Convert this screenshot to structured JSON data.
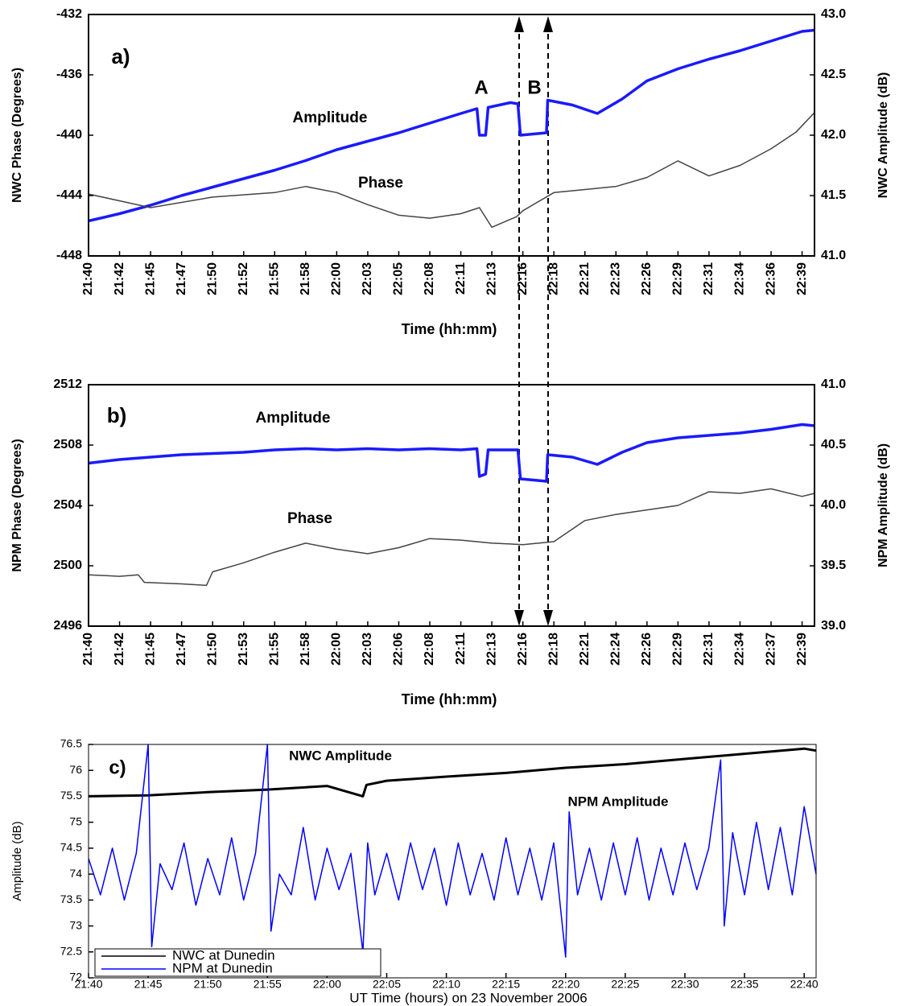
{
  "chart_data": [
    {
      "type": "line",
      "xlabel": "Time (hh:mm)",
      "ylabel": "NWC Phase (Degrees)",
      "y2label": "NWC Amplitude (dB)",
      "annotations": [
        "a)",
        "A",
        "B"
      ],
      "xlim": [
        1300,
        1358.5
      ],
      "xticks": [
        {
          "value": 1300,
          "label": "21:40"
        },
        {
          "value": 1302.5,
          "label": "21:42"
        },
        {
          "value": 1305,
          "label": "21:45"
        },
        {
          "value": 1307.5,
          "label": "21:47"
        },
        {
          "value": 1310,
          "label": "21:50"
        },
        {
          "value": 1312.5,
          "label": "21:52"
        },
        {
          "value": 1315,
          "label": "21:55"
        },
        {
          "value": 1317.5,
          "label": "21:58"
        },
        {
          "value": 1320,
          "label": "22:00"
        },
        {
          "value": 1322.5,
          "label": "22:03"
        },
        {
          "value": 1325,
          "label": "22:05"
        },
        {
          "value": 1327.5,
          "label": "22:08"
        },
        {
          "value": 1330,
          "label": "22:11"
        },
        {
          "value": 1332.5,
          "label": "22:13"
        },
        {
          "value": 1335,
          "label": "22:16"
        },
        {
          "value": 1337.5,
          "label": "22:18"
        },
        {
          "value": 1340,
          "label": "22:21"
        },
        {
          "value": 1342.5,
          "label": "22:23"
        },
        {
          "value": 1345,
          "label": "22:26"
        },
        {
          "value": 1347.5,
          "label": "22:29"
        },
        {
          "value": 1350,
          "label": "22:31"
        },
        {
          "value": 1352.5,
          "label": "22:34"
        },
        {
          "value": 1355,
          "label": "22:36"
        },
        {
          "value": 1357.5,
          "label": "22:39"
        }
      ],
      "ylim": [
        -448,
        -432
      ],
      "yticks": [
        -448,
        -444,
        -440,
        -436,
        -432
      ],
      "y2lim": [
        41,
        43
      ],
      "y2ticks": [
        {
          "value": 41,
          "label": "41.0"
        },
        41.5,
        {
          "value": 42,
          "label": "42.0"
        },
        42.5,
        {
          "value": 43,
          "label": "43.0"
        }
      ],
      "series": [
        {
          "name": "Amplitude",
          "color": "#1a1aff",
          "axis": "y2",
          "x": [
            1300,
            1302.5,
            1305,
            1307.5,
            1310,
            1312.5,
            1315,
            1317.5,
            1320,
            1322.5,
            1325,
            1327.5,
            1330,
            1331.3,
            1331.5,
            1332,
            1332.2,
            1334,
            1334.6,
            1334.8,
            1336.9,
            1337,
            1339,
            1341,
            1343,
            1345,
            1347.5,
            1350,
            1352.5,
            1355,
            1357.5,
            1358.5
          ],
          "values": [
            41.29,
            41.35,
            41.42,
            41.5,
            41.57,
            41.64,
            41.71,
            41.79,
            41.88,
            41.95,
            42.02,
            42.1,
            42.18,
            42.22,
            42.0,
            42.0,
            42.23,
            42.27,
            42.26,
            42.0,
            42.02,
            42.29,
            42.25,
            42.18,
            42.3,
            42.45,
            42.55,
            42.63,
            42.7,
            42.78,
            42.86,
            42.87
          ]
        },
        {
          "name": "Phase",
          "color": "#444444",
          "x": [
            1300,
            1305,
            1310,
            1315,
            1317.5,
            1320,
            1322.5,
            1325,
            1327.5,
            1330,
            1331.5,
            1332.5,
            1334.5,
            1335,
            1337.5,
            1340,
            1342.5,
            1345,
            1347.5,
            1350,
            1352.5,
            1355,
            1357,
            1358.5
          ],
          "values": [
            -443.9,
            -444.8,
            -444.1,
            -443.8,
            -443.4,
            -443.8,
            -444.6,
            -445.3,
            -445.5,
            -445.2,
            -444.8,
            -446.1,
            -445.4,
            -445.0,
            -443.8,
            -443.6,
            -443.4,
            -442.8,
            -441.7,
            -442.7,
            -442.0,
            -440.9,
            -439.8,
            -438.5
          ]
        }
      ]
    },
    {
      "type": "line",
      "xlabel": "Time (hh:mm)",
      "ylabel": "NPM Phase (Degrees)",
      "y2label": "NPM Amplitude (dB)",
      "annotations": [
        "b)"
      ],
      "xlim": [
        1300,
        1358.5
      ],
      "xticks": [
        {
          "value": 1300,
          "label": "21:40"
        },
        {
          "value": 1302.5,
          "label": "21:42"
        },
        {
          "value": 1305,
          "label": "21:45"
        },
        {
          "value": 1307.5,
          "label": "21:47"
        },
        {
          "value": 1310,
          "label": "21:50"
        },
        {
          "value": 1312.5,
          "label": "21:53"
        },
        {
          "value": 1315,
          "label": "21:55"
        },
        {
          "value": 1317.5,
          "label": "21:58"
        },
        {
          "value": 1320,
          "label": "22:00"
        },
        {
          "value": 1322.5,
          "label": "22:03"
        },
        {
          "value": 1325,
          "label": "22:06"
        },
        {
          "value": 1327.5,
          "label": "22:08"
        },
        {
          "value": 1330,
          "label": "22:11"
        },
        {
          "value": 1332.5,
          "label": "22:13"
        },
        {
          "value": 1335,
          "label": "22:16"
        },
        {
          "value": 1337.5,
          "label": "22:18"
        },
        {
          "value": 1340,
          "label": "22:21"
        },
        {
          "value": 1342.5,
          "label": "22:24"
        },
        {
          "value": 1345,
          "label": "22:26"
        },
        {
          "value": 1347.5,
          "label": "22:29"
        },
        {
          "value": 1350,
          "label": "22:31"
        },
        {
          "value": 1352.5,
          "label": "22:34"
        },
        {
          "value": 1355,
          "label": "22:37"
        },
        {
          "value": 1357.5,
          "label": "22:39"
        }
      ],
      "ylim": [
        2496,
        2512
      ],
      "yticks": [
        2496,
        2500,
        2504,
        2508,
        2512
      ],
      "y2lim": [
        39,
        41
      ],
      "y2ticks": [
        {
          "value": 39,
          "label": "39.0"
        },
        39.5,
        {
          "value": 40,
          "label": "40.0"
        },
        40.5,
        {
          "value": 41,
          "label": "41.0"
        }
      ],
      "series": [
        {
          "name": "Amplitude",
          "color": "#1a1aff",
          "axis": "y2",
          "x": [
            1300,
            1302.5,
            1305,
            1307.5,
            1310,
            1312.5,
            1315,
            1317.5,
            1320,
            1322.5,
            1325,
            1327.5,
            1330,
            1331.3,
            1331.5,
            1332,
            1332.2,
            1334.6,
            1334.8,
            1336.9,
            1337,
            1339,
            1341,
            1343,
            1345,
            1347.5,
            1350,
            1352.5,
            1355,
            1357.5,
            1358.5
          ],
          "values": [
            40.35,
            40.38,
            40.4,
            40.42,
            40.43,
            40.44,
            40.46,
            40.47,
            40.46,
            40.47,
            40.46,
            40.47,
            40.46,
            40.47,
            40.24,
            40.26,
            40.46,
            40.46,
            40.22,
            40.2,
            40.42,
            40.4,
            40.34,
            40.44,
            40.52,
            40.56,
            40.58,
            40.6,
            40.63,
            40.67,
            40.66
          ]
        },
        {
          "name": "Phase",
          "color": "#444444",
          "x": [
            1300,
            1302.5,
            1304,
            1304.5,
            1307.5,
            1309.5,
            1310,
            1312.5,
            1315,
            1317.5,
            1320,
            1322.5,
            1325,
            1327.5,
            1330,
            1332.5,
            1335,
            1337.5,
            1340,
            1342.5,
            1345,
            1347.5,
            1350,
            1352.5,
            1355,
            1357.5,
            1358.5
          ],
          "values": [
            2499.4,
            2499.3,
            2499.4,
            2498.9,
            2498.8,
            2498.7,
            2499.6,
            2500.2,
            2500.9,
            2501.5,
            2501.1,
            2500.8,
            2501.2,
            2501.8,
            2501.7,
            2501.5,
            2501.4,
            2501.6,
            2503.0,
            2503.4,
            2503.7,
            2504.0,
            2504.9,
            2504.8,
            2505.1,
            2504.6,
            2504.8
          ]
        }
      ]
    },
    {
      "type": "line",
      "xlabel": "UT Time (hours) on 23 November 2006",
      "ylabel": "Amplitude (dB)",
      "annotations": [
        "c)",
        "NWC Amplitude",
        "NPM Amplitude"
      ],
      "legend": "lower left",
      "xlim": [
        1300,
        1361
      ],
      "xticks": [
        {
          "value": 1300,
          "label": "21:40"
        },
        {
          "value": 1305,
          "label": "21:45"
        },
        {
          "value": 1310,
          "label": "21:50"
        },
        {
          "value": 1315,
          "label": "21:55"
        },
        {
          "value": 1320,
          "label": "22:00"
        },
        {
          "value": 1325,
          "label": "22:05"
        },
        {
          "value": 1330,
          "label": "22:10"
        },
        {
          "value": 1335,
          "label": "22:15"
        },
        {
          "value": 1340,
          "label": "22:20"
        },
        {
          "value": 1345,
          "label": "22:25"
        },
        {
          "value": 1350,
          "label": "22:30"
        },
        {
          "value": 1355,
          "label": "22:35"
        },
        {
          "value": 1360,
          "label": "22:40"
        }
      ],
      "ylim": [
        72,
        76.5
      ],
      "yticks": [
        72,
        72.5,
        73,
        73.5,
        74,
        74.5,
        75,
        75.5,
        76,
        76.5
      ],
      "series": [
        {
          "name": "NWC at Dunedin",
          "color": "#000000",
          "x": [
            1300,
            1305,
            1310,
            1315,
            1320,
            1323,
            1323.3,
            1325,
            1330,
            1335,
            1340,
            1345,
            1350,
            1355,
            1360,
            1361
          ],
          "values": [
            75.5,
            75.52,
            75.58,
            75.63,
            75.7,
            75.5,
            75.72,
            75.8,
            75.88,
            75.95,
            76.05,
            76.12,
            76.22,
            76.32,
            76.42,
            76.38
          ]
        },
        {
          "name": "NPM at Dunedin",
          "color": "#0000ff",
          "x": [
            1300,
            1301,
            1302,
            1303,
            1304,
            1305,
            1305.3,
            1306,
            1307,
            1308,
            1309,
            1310,
            1311,
            1312,
            1313,
            1314,
            1315,
            1315.3,
            1316,
            1317,
            1318,
            1319,
            1320,
            1321,
            1322,
            1323,
            1323.4,
            1324,
            1325,
            1326,
            1327,
            1328,
            1329,
            1330,
            1331,
            1332,
            1333,
            1334,
            1335,
            1336,
            1337,
            1338,
            1339,
            1340,
            1340.3,
            1341,
            1342,
            1343,
            1344,
            1345,
            1346,
            1347,
            1348,
            1349,
            1350,
            1351,
            1352,
            1353,
            1353.3,
            1354,
            1355,
            1356,
            1357,
            1358,
            1359,
            1360,
            1361
          ],
          "values": [
            74.3,
            73.6,
            74.5,
            73.5,
            74.4,
            76.5,
            72.6,
            74.2,
            73.7,
            74.6,
            73.4,
            74.3,
            73.6,
            74.7,
            73.5,
            74.4,
            76.5,
            72.9,
            74.0,
            73.6,
            74.9,
            73.5,
            74.5,
            73.7,
            74.4,
            72.5,
            74.6,
            73.6,
            74.4,
            73.5,
            74.6,
            73.7,
            74.5,
            73.4,
            74.6,
            73.6,
            74.4,
            73.5,
            74.7,
            73.6,
            74.5,
            73.5,
            74.6,
            72.4,
            75.2,
            73.6,
            74.5,
            73.5,
            74.6,
            73.6,
            74.7,
            73.5,
            74.5,
            73.6,
            74.6,
            73.7,
            74.5,
            76.2,
            73.0,
            74.8,
            73.6,
            75.0,
            73.7,
            74.9,
            73.6,
            75.3,
            74.0
          ]
        }
      ]
    }
  ]
}
